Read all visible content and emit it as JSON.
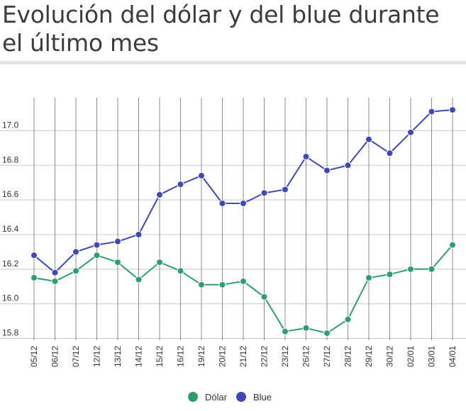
{
  "title": "Evolución del dólar y del blue durante el último mes",
  "chart_data": {
    "type": "line",
    "title": "Evolución del dólar y del blue durante el último mes",
    "xlabel": "",
    "ylabel": "",
    "categories": [
      "05/12",
      "06/12",
      "07/12",
      "12/12",
      "13/12",
      "14/12",
      "15/12",
      "16/12",
      "19/12",
      "20/12",
      "21/12",
      "22/12",
      "23/12",
      "26/12",
      "27/12",
      "28/12",
      "29/12",
      "30/12",
      "02/01",
      "03/01",
      "04/01"
    ],
    "yticks": [
      "15.8",
      "16.0",
      "16.2",
      "16.4",
      "16.6",
      "16.8",
      "17.0"
    ],
    "ylim": [
      15.79,
      17.19
    ],
    "grid": true,
    "legend_position": "bottom",
    "series": [
      {
        "name": "Dólar",
        "color": "#2e9e6e",
        "values": [
          16.15,
          16.13,
          16.19,
          16.28,
          16.24,
          16.14,
          16.24,
          16.19,
          16.11,
          16.11,
          16.13,
          16.04,
          15.84,
          15.86,
          15.83,
          15.91,
          16.15,
          16.17,
          16.2,
          16.2,
          16.34
        ]
      },
      {
        "name": "Blue",
        "color": "#3f48b5",
        "values": [
          16.28,
          16.18,
          16.3,
          16.34,
          16.36,
          16.4,
          16.63,
          16.69,
          16.74,
          16.58,
          16.58,
          16.64,
          16.66,
          16.85,
          16.77,
          16.8,
          16.95,
          16.87,
          16.99,
          17.11,
          17.12
        ]
      }
    ]
  }
}
